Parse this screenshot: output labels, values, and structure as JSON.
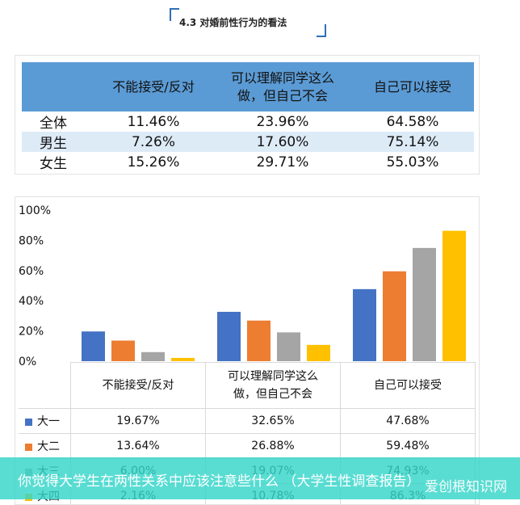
{
  "section": {
    "title": "4.3 对婚前性行为的看法"
  },
  "top_table": {
    "headers": [
      "",
      "不能接受/反对",
      "可以理解同学这么\n做，但自己不会",
      "自己可以接受"
    ],
    "rows": [
      {
        "label": "全体",
        "values": [
          "11.46%",
          "23.96%",
          "64.58%"
        ]
      },
      {
        "label": "男生",
        "values": [
          "7.26%",
          "17.60%",
          "75.14%"
        ]
      },
      {
        "label": "女生",
        "values": [
          "15.26%",
          "29.71%",
          "55.03%"
        ]
      }
    ]
  },
  "chart_data": {
    "type": "bar",
    "categories": [
      "不能接受/反对",
      "可以理解同学这么\n做，但自己不会",
      "自己可以接受"
    ],
    "series": [
      {
        "name": "大一",
        "color": "#4472c4",
        "values": [
          19.67,
          32.65,
          47.68
        ],
        "labels": [
          "19.67%",
          "32.65%",
          "47.68%"
        ]
      },
      {
        "name": "大二",
        "color": "#ed7d31",
        "values": [
          13.64,
          26.88,
          59.48
        ],
        "labels": [
          "13.64%",
          "26.88%",
          "59.48%"
        ]
      },
      {
        "name": "大三",
        "color": "#a5a5a5",
        "values": [
          6.0,
          19.07,
          74.93
        ],
        "labels": [
          "6.00%",
          "19.07%",
          "74.93%"
        ]
      },
      {
        "name": "大四",
        "color": "#ffc000",
        "values": [
          2.16,
          10.78,
          86.3
        ],
        "labels": [
          "2.16%",
          "10.78%",
          "86.3%"
        ]
      }
    ],
    "yticks": [
      "0%",
      "20%",
      "40%",
      "60%",
      "80%",
      "100%"
    ],
    "ylim": [
      0,
      100
    ],
    "grid": false
  },
  "banner": {
    "caption": "你觉得大学生在两性关系中应该注意些什么 （大学生性调查报告）",
    "watermark": "爱创根知识网"
  }
}
